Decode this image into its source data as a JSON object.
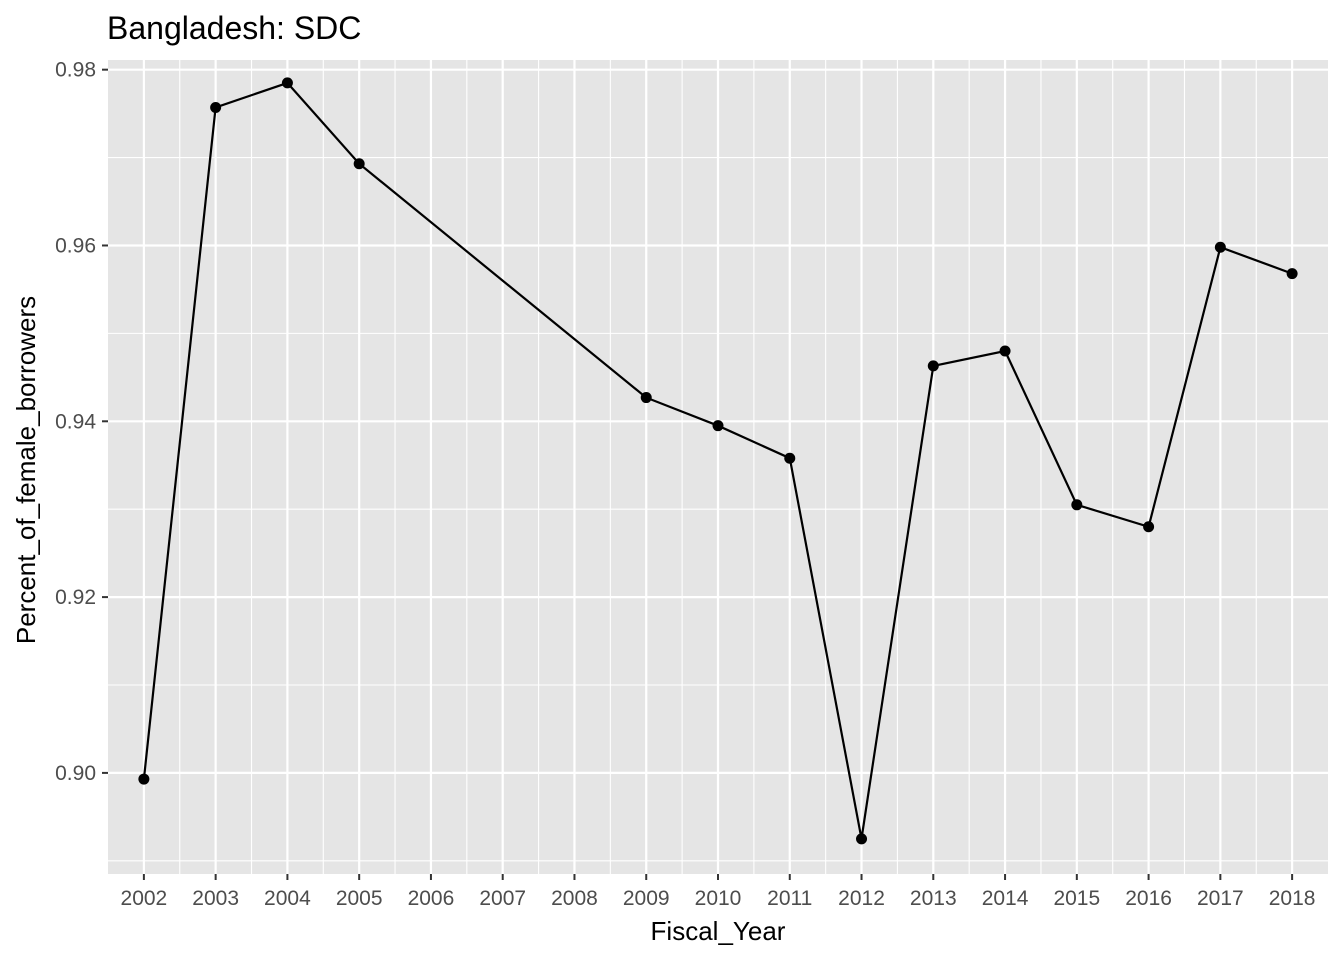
{
  "chart_data": {
    "type": "line",
    "title": "Bangladesh:  SDC",
    "xlabel": "Fiscal_Year",
    "ylabel": "Percent_of_female_borrowers",
    "x_ticks": [
      "2002",
      "2003",
      "2004",
      "2005",
      "2006",
      "2007",
      "2008",
      "2009",
      "2010",
      "2011",
      "2012",
      "2013",
      "2014",
      "2015",
      "2016",
      "2017",
      "2018"
    ],
    "y_ticks": [
      "0.90",
      "0.92",
      "0.94",
      "0.96",
      "0.98"
    ],
    "xlim": [
      2001.5,
      2018.5
    ],
    "ylim": [
      0.8885,
      0.9811
    ],
    "grid": true,
    "legend": "none",
    "colors": {
      "panel": "#e5e5e5",
      "grid": "#ffffff",
      "line": "#000000"
    },
    "series": [
      {
        "x": [
          2002,
          2003,
          2004,
          2005,
          2009,
          2010,
          2011,
          2012,
          2013,
          2014,
          2015,
          2016,
          2017,
          2018
        ],
        "y": [
          0.8993,
          0.9757,
          0.9785,
          0.9693,
          0.9427,
          0.9395,
          0.9358,
          0.8925,
          0.9463,
          0.948,
          0.9305,
          0.928,
          0.9598,
          0.9568
        ]
      }
    ]
  }
}
